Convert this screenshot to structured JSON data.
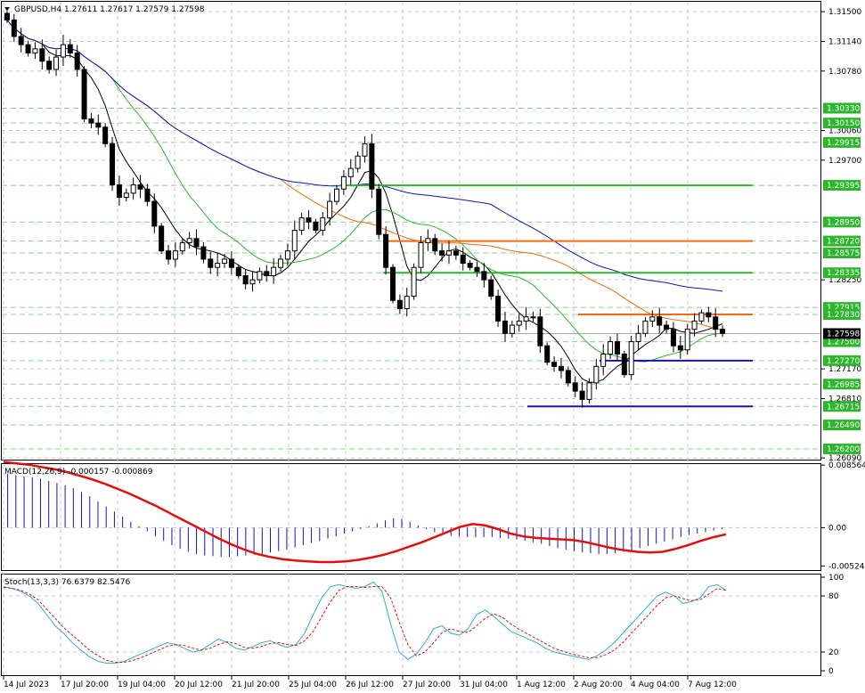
{
  "chart_data": [
    {
      "type": "candlestick",
      "title": "GBPUSD,H4  1.27611 1.27617 1.27579 1.27598",
      "symbol": "GBPUSD",
      "timeframe": "H4",
      "ohlc_last": {
        "open": "1.27611",
        "high": "1.27617",
        "low": "1.27579",
        "close": "1.27598"
      },
      "current_price": "1.27598",
      "ylim": [
        1.2607,
        1.3162
      ],
      "y_ticks": [
        "1.31500",
        "1.31140",
        "1.30780",
        "1.30060",
        "1.29700",
        "1.28250",
        "1.27170",
        "1.26810",
        "1.26090"
      ],
      "x_ticks": [
        "14 Jul 2023",
        "17 Jul 20:00",
        "19 Jul 04:00",
        "20 Jul 12:00",
        "21 Jul 20:00",
        "25 Jul 04:00",
        "26 Jul 12:00",
        "27 Jul 20:00",
        "31 Jul 04:00",
        "1 Aug 12:00",
        "2 Aug 20:00",
        "4 Aug 04:00",
        "7 Aug 12:00"
      ],
      "level_labels": [
        "1.30330",
        "1.30150",
        "1.29915",
        "1.29395",
        "1.28950",
        "1.28720",
        "1.28575",
        "1.28335",
        "1.27915",
        "1.27830",
        "1.27500",
        "1.27270",
        "1.26985",
        "1.26715",
        "1.26490",
        "1.26200"
      ],
      "close_path": [
        1.314,
        1.312,
        1.311,
        1.31,
        1.3105,
        1.309,
        1.308,
        1.3095,
        1.311,
        1.31,
        1.308,
        1.302,
        1.3015,
        1.301,
        1.299,
        1.294,
        1.2925,
        1.293,
        1.294,
        1.2935,
        1.292,
        1.289,
        1.286,
        1.285,
        1.286,
        1.287,
        1.2875,
        1.2865,
        1.285,
        1.284,
        1.2845,
        1.285,
        1.284,
        1.283,
        1.282,
        1.2825,
        1.2835,
        1.283,
        1.284,
        1.285,
        1.286,
        1.2885,
        1.29,
        1.2895,
        1.2885,
        1.29,
        1.292,
        1.2935,
        1.295,
        1.296,
        1.2975,
        1.299,
        1.2935,
        1.288,
        1.284,
        1.28,
        1.279,
        1.2805,
        1.284,
        1.287,
        1.2875,
        1.286,
        1.2855,
        1.286,
        1.2855,
        1.2845,
        1.284,
        1.2835,
        1.2825,
        1.2805,
        1.2775,
        1.276,
        1.277,
        1.2775,
        1.278,
        1.278,
        1.2745,
        1.2725,
        1.272,
        1.2715,
        1.27,
        1.269,
        1.268,
        1.27,
        1.272,
        1.2735,
        1.275,
        1.2735,
        1.271,
        1.275,
        1.276,
        1.2775,
        1.278,
        1.277,
        1.2765,
        1.2745,
        1.274,
        1.2765,
        1.2775,
        1.2785,
        1.278,
        1.2765,
        1.276
      ],
      "horizontal_levels": [
        {
          "price": 1.29395,
          "color": "#2db52d",
          "from": 0.465
        },
        {
          "price": 1.2872,
          "color": "#f06a10",
          "from": 0.525
        },
        {
          "price": 1.28335,
          "color": "#2db52d",
          "from": 0.525
        },
        {
          "price": 1.2783,
          "color": "#f06a10",
          "from": 0.795
        },
        {
          "price": 1.2727,
          "color": "#1414b4",
          "from": 0.825
        },
        {
          "price": 1.26715,
          "color": "#1414b4",
          "from": 0.725
        }
      ],
      "grid": true
    },
    {
      "type": "histogram+line",
      "title": "MACD(12,26,9) -0.000157 -0.000869",
      "ylim": [
        -0.0058,
        0.0087
      ],
      "y_ticks": [
        "0.008564",
        "0.00",
        "-0.00524"
      ],
      "histogram": [
        0.0074,
        0.0072,
        0.007,
        0.0069,
        0.0067,
        0.0064,
        0.0061,
        0.0058,
        0.0054,
        0.0049,
        0.0043,
        0.0036,
        0.0029,
        0.0022,
        0.0015,
        0.0008,
        0.0002,
        -0.0005,
        -0.0012,
        -0.0018,
        -0.0024,
        -0.0029,
        -0.0033,
        -0.0036,
        -0.0038,
        -0.0039,
        -0.004,
        -0.004,
        -0.0039,
        -0.0038,
        -0.0037,
        -0.0036,
        -0.0034,
        -0.0032,
        -0.003,
        -0.0027,
        -0.0024,
        -0.0021,
        -0.0018,
        -0.0015,
        -0.0012,
        -0.0008,
        -0.0005,
        -0.0002,
        0.0002,
        0.0006,
        0.001,
        0.0013,
        0.0012,
        0.0008,
        0.0003,
        -0.0002,
        -0.0006,
        -0.0009,
        -0.0011,
        -0.0012,
        -0.0013,
        -0.0013,
        -0.0013,
        -0.0013,
        -0.0014,
        -0.0015,
        -0.0016,
        -0.0018,
        -0.002,
        -0.0022,
        -0.0025,
        -0.0028,
        -0.003,
        -0.0032,
        -0.0034,
        -0.0035,
        -0.0036,
        -0.0036,
        -0.0035,
        -0.0033,
        -0.0031,
        -0.0028,
        -0.0025,
        -0.0022,
        -0.0019,
        -0.0016,
        -0.0013,
        -0.001,
        -0.0008,
        -0.0006,
        -0.0004,
        -0.0002
      ],
      "signal": [
        0.009,
        0.0088,
        0.0086,
        0.0083,
        0.008,
        0.0076,
        0.0071,
        0.0066,
        0.006,
        0.0053,
        0.0046,
        0.0038,
        0.003,
        0.0021,
        0.0012,
        0.0003,
        -0.0006,
        -0.0015,
        -0.0023,
        -0.003,
        -0.0036,
        -0.004,
        -0.0043,
        -0.0045,
        -0.0046,
        -0.0047,
        -0.0047,
        -0.0046,
        -0.0044,
        -0.0041,
        -0.0037,
        -0.0032,
        -0.0026,
        -0.002,
        -0.0013,
        -0.0006,
        0.0001,
        0.0005,
        0.0003,
        -0.0002,
        -0.0008,
        -0.0012,
        -0.0014,
        -0.0015,
        -0.0016,
        -0.0017,
        -0.002,
        -0.0024,
        -0.0028,
        -0.0031,
        -0.0033,
        -0.0034,
        -0.0033,
        -0.0029,
        -0.0024,
        -0.0018,
        -0.0013,
        -0.0009
      ],
      "histogram_color": "#1414b4",
      "signal_color": "#e01010"
    },
    {
      "type": "line",
      "title": "Stoch(13,3,3) 76.6379 82.5476",
      "ylim": [
        0,
        100
      ],
      "y_ticks": [
        "100",
        "80",
        "20",
        "0"
      ],
      "main": [
        90,
        88,
        85,
        80,
        72,
        60,
        48,
        40,
        30,
        22,
        15,
        10,
        8,
        8,
        10,
        14,
        18,
        22,
        26,
        30,
        28,
        24,
        20,
        22,
        28,
        34,
        30,
        24,
        22,
        26,
        30,
        32,
        28,
        25,
        28,
        40,
        60,
        78,
        90,
        92,
        90,
        88,
        90,
        95,
        85,
        50,
        20,
        12,
        18,
        30,
        45,
        48,
        40,
        38,
        45,
        60,
        65,
        58,
        50,
        42,
        38,
        34,
        30,
        24,
        20,
        18,
        16,
        14,
        12,
        16,
        22,
        30,
        40,
        50,
        60,
        70,
        80,
        84,
        80,
        72,
        74,
        78,
        90,
        92,
        86
      ],
      "signal": [
        89,
        88,
        86,
        82,
        76,
        66,
        56,
        46,
        38,
        30,
        22,
        16,
        11,
        9,
        9,
        11,
        14,
        18,
        22,
        26,
        28,
        27,
        24,
        22,
        24,
        28,
        31,
        29,
        25,
        24,
        26,
        29,
        30,
        28,
        27,
        32,
        42,
        58,
        74,
        86,
        90,
        90,
        89,
        90,
        90,
        78,
        52,
        28,
        16,
        20,
        30,
        41,
        45,
        42,
        41,
        48,
        56,
        61,
        57,
        50,
        44,
        39,
        34,
        29,
        24,
        21,
        18,
        16,
        14,
        14,
        17,
        22,
        30,
        40,
        50,
        60,
        70,
        78,
        80,
        77,
        75,
        76,
        82,
        88,
        86
      ],
      "main_color": "#33b0c8",
      "signal_color": "#e01010"
    }
  ]
}
